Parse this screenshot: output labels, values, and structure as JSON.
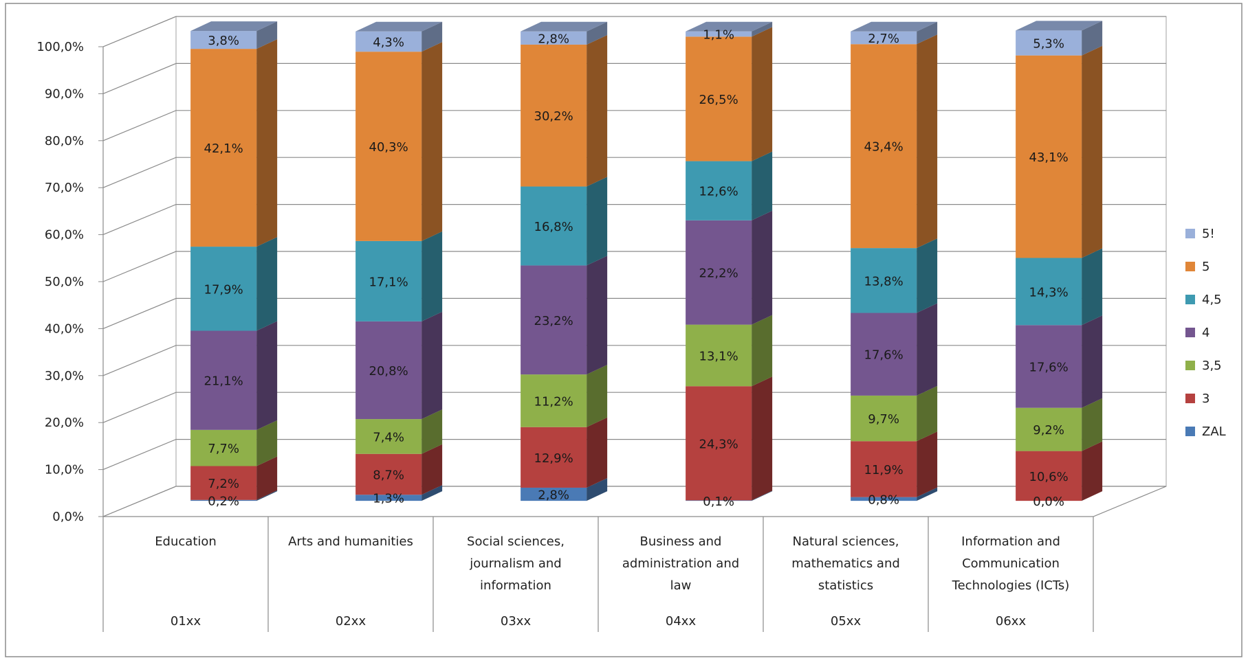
{
  "chart_data": {
    "type": "bar",
    "stacked": true,
    "three_d": true,
    "categories": [
      {
        "name": "Education",
        "code": "01xx"
      },
      {
        "name": "Arts and humanities",
        "code": "02xx"
      },
      {
        "name": "Social sciences, journalism and information",
        "code": "03xx"
      },
      {
        "name": "Business and administration and law",
        "code": "04xx"
      },
      {
        "name": "Natural sciences, mathematics and statistics",
        "code": "05xx"
      },
      {
        "name": "Information and Communication Technologies (ICTs)",
        "code": "06xx"
      }
    ],
    "series": [
      {
        "name": "ZAL",
        "color": "#4a7ab5",
        "values": [
          0.2,
          1.3,
          2.8,
          0.1,
          0.8,
          0.0
        ],
        "labels": [
          "0,2%",
          "1,3%",
          "2,8%",
          "0,1%",
          "0,8%",
          "0,0%"
        ]
      },
      {
        "name": "3",
        "color": "#b5413f",
        "values": [
          7.2,
          8.7,
          12.9,
          24.3,
          11.9,
          10.6
        ],
        "labels": [
          "7,2%",
          "8,7%",
          "12,9%",
          "24,3%",
          "11,9%",
          "10,6%"
        ]
      },
      {
        "name": "3,5",
        "color": "#8fb04a",
        "values": [
          7.7,
          7.4,
          11.2,
          13.1,
          9.7,
          9.2
        ],
        "labels": [
          "7,7%",
          "7,4%",
          "11,2%",
          "13,1%",
          "9,7%",
          "9,2%"
        ]
      },
      {
        "name": "4",
        "color": "#74568f",
        "values": [
          21.1,
          20.8,
          23.2,
          22.2,
          17.6,
          17.6
        ],
        "labels": [
          "21,1%",
          "20,8%",
          "23,2%",
          "22,2%",
          "17,6%",
          "17,6%"
        ]
      },
      {
        "name": "4,5",
        "color": "#3e9ab1",
        "values": [
          17.9,
          17.1,
          16.8,
          12.6,
          13.8,
          14.3
        ],
        "labels": [
          "17,9%",
          "17,1%",
          "16,8%",
          "12,6%",
          "13,8%",
          "14,3%"
        ]
      },
      {
        "name": "5",
        "color": "#e08638",
        "values": [
          42.1,
          40.3,
          30.2,
          26.5,
          43.4,
          43.1
        ],
        "labels": [
          "42,1%",
          "40,3%",
          "30,2%",
          "26,5%",
          "43,4%",
          "43,1%"
        ]
      },
      {
        "name": "5!",
        "color": "#9ab0da",
        "values": [
          3.8,
          4.3,
          2.8,
          1.1,
          2.7,
          5.3
        ],
        "labels": [
          "3,8%",
          "4,3%",
          "2,8%",
          "1,1%",
          "2,7%",
          "5,3%"
        ]
      }
    ],
    "y_ticks": [
      "0,0%",
      "10,0%",
      "20,0%",
      "30,0%",
      "40,0%",
      "50,0%",
      "60,0%",
      "70,0%",
      "80,0%",
      "90,0%",
      "100,0%"
    ],
    "ylim": [
      0,
      100
    ],
    "grid": true,
    "legend_position": "right"
  }
}
